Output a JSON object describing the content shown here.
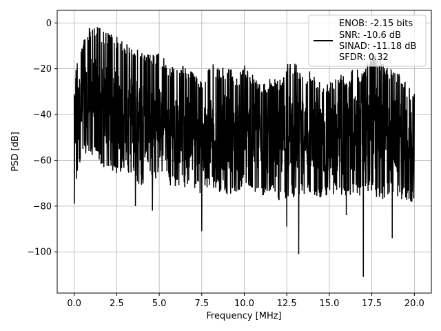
{
  "chart_data": {
    "type": "line",
    "title": "",
    "xlabel": "Frequency [MHz]",
    "ylabel": "PSD [dB]",
    "xlim": [
      -1,
      21
    ],
    "ylim": [
      -118,
      5.5
    ],
    "x_ticks": [
      0,
      2.5,
      5,
      7.5,
      10,
      12.5,
      15,
      17.5,
      20
    ],
    "x_tick_labels": [
      "0.0",
      "2.5",
      "5.0",
      "7.5",
      "10.0",
      "12.5",
      "15.0",
      "17.5",
      "20.0"
    ],
    "y_ticks": [
      0,
      -20,
      -40,
      -60,
      -80,
      -100
    ],
    "y_tick_labels": [
      "0",
      "−20",
      "−40",
      "−60",
      "−80",
      "−100"
    ],
    "grid": true,
    "legend_position": "top-right",
    "series": [
      {
        "color": "#000000",
        "envelope": {
          "x": [
            0,
            0.1,
            0.3,
            0.5,
            0.8,
            1.0,
            1.2,
            1.5,
            2.0,
            2.5,
            3.0,
            3.5,
            4.0,
            4.5,
            5.0,
            5.5,
            6.0,
            6.5,
            7.0,
            7.5,
            8.0,
            8.5,
            9.0,
            9.5,
            10.0,
            10.5,
            11.0,
            11.5,
            12.0,
            12.5,
            13.0,
            13.5,
            14.0,
            14.5,
            15.0,
            15.5,
            16.0,
            16.5,
            17.0,
            17.5,
            18.0,
            18.5,
            19.0,
            19.5,
            20.0
          ],
          "upper": [
            -31,
            -18,
            -12,
            -7,
            -3,
            0,
            0,
            -2,
            -4,
            -6,
            -8,
            -10,
            -12,
            -14,
            -13,
            -17,
            -20,
            -18,
            -22,
            -25,
            -17,
            -20,
            -18,
            -23,
            -18,
            -22,
            -27,
            -24,
            -25,
            -18,
            -17,
            -22,
            -20,
            -26,
            -25,
            -21,
            -24,
            -18,
            -22,
            -12,
            -15,
            -20,
            -20,
            -26,
            -31
          ],
          "lower": [
            -79,
            -72,
            -62,
            -60,
            -55,
            -58,
            -60,
            -62,
            -64,
            -66,
            -65,
            -68,
            -72,
            -70,
            -68,
            -70,
            -73,
            -72,
            -75,
            -75,
            -72,
            -74,
            -75,
            -74,
            -72,
            -75,
            -76,
            -75,
            -78,
            -76,
            -77,
            -76,
            -75,
            -78,
            -77,
            -75,
            -76,
            -75,
            -77,
            -74,
            -78,
            -75,
            -76,
            -78,
            -80
          ],
          "mean": [
            -45,
            -42,
            -38,
            -36,
            -34,
            -32,
            -33,
            -35,
            -37,
            -38,
            -40,
            -41,
            -43,
            -44,
            -44,
            -46,
            -48,
            -47,
            -49,
            -50,
            -47,
            -48,
            -48,
            -50,
            -48,
            -50,
            -52,
            -51,
            -52,
            -48,
            -48,
            -50,
            -49,
            -52,
            -52,
            -50,
            -51,
            -48,
            -50,
            -44,
            -47,
            -49,
            -50,
            -52,
            -55
          ]
        },
        "minima": [
          {
            "x": 3.6,
            "y": -80
          },
          {
            "x": 4.6,
            "y": -82
          },
          {
            "x": 7.5,
            "y": -91
          },
          {
            "x": 12.5,
            "y": -89
          },
          {
            "x": 13.2,
            "y": -101
          },
          {
            "x": 16.0,
            "y": -84
          },
          {
            "x": 17.0,
            "y": -111
          },
          {
            "x": 18.7,
            "y": -94
          }
        ]
      }
    ],
    "legend": {
      "entries": [
        "ENOB: -2.15 bits",
        "SNR: -10.6 dB",
        "SINAD: -11.18 dB",
        "SFDR: 0.32"
      ]
    }
  }
}
